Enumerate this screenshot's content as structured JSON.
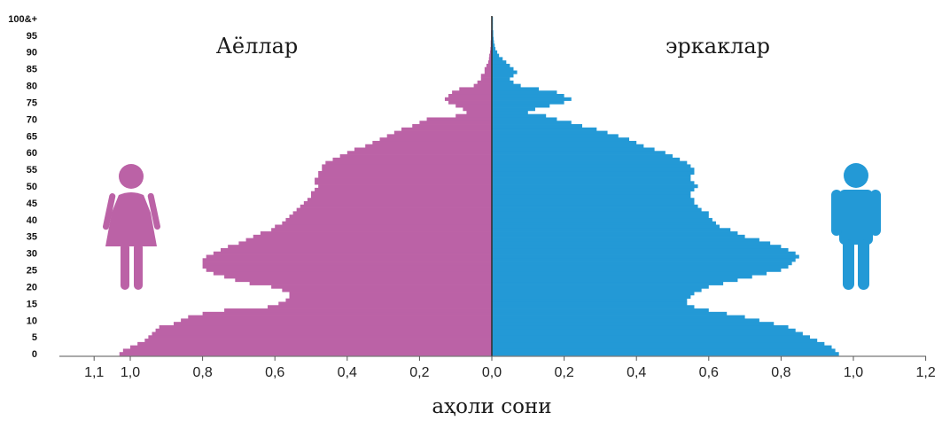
{
  "chart_data": {
    "type": "bar",
    "orientation": "horizontal-pyramid",
    "xlabel": "аҳоли сони",
    "female_label": "Аёллар",
    "male_label": "эркаклар",
    "age_ticks": [
      "0",
      "5",
      "10",
      "15",
      "20",
      "25",
      "30",
      "35",
      "40",
      "45",
      "50",
      "55",
      "60",
      "65",
      "70",
      "75",
      "80",
      "85",
      "90",
      "95",
      "100&+"
    ],
    "x_ticks_left": [
      "1,1",
      "1,0",
      "0,8",
      "0,6",
      "0,4",
      "0,2",
      "0,0"
    ],
    "x_ticks_right": [
      "0,2",
      "0,4",
      "0,6",
      "0,8",
      "1,0",
      "1,2"
    ],
    "xlim_left": [
      1.1,
      0
    ],
    "xlim_right": [
      0,
      1.2
    ],
    "ages": [
      0,
      1,
      2,
      3,
      4,
      5,
      6,
      7,
      8,
      9,
      10,
      11,
      12,
      13,
      14,
      15,
      16,
      17,
      18,
      19,
      20,
      21,
      22,
      23,
      24,
      25,
      26,
      27,
      28,
      29,
      30,
      31,
      32,
      33,
      34,
      35,
      36,
      37,
      38,
      39,
      40,
      41,
      42,
      43,
      44,
      45,
      46,
      47,
      48,
      49,
      50,
      51,
      52,
      53,
      54,
      55,
      56,
      57,
      58,
      59,
      60,
      61,
      62,
      63,
      64,
      65,
      66,
      67,
      68,
      69,
      70,
      71,
      72,
      73,
      74,
      75,
      76,
      77,
      78,
      79,
      80,
      81,
      82,
      83,
      84,
      85,
      86,
      87,
      88,
      89,
      90,
      91,
      92,
      93,
      94,
      95,
      96,
      97,
      98,
      99,
      100
    ],
    "series": [
      {
        "name": "Аёллар",
        "color": "#bb62a6",
        "values": [
          1.03,
          1.02,
          1.0,
          0.98,
          0.96,
          0.95,
          0.94,
          0.93,
          0.92,
          0.88,
          0.86,
          0.84,
          0.8,
          0.74,
          0.62,
          0.59,
          0.57,
          0.56,
          0.56,
          0.58,
          0.61,
          0.67,
          0.71,
          0.74,
          0.77,
          0.79,
          0.8,
          0.8,
          0.8,
          0.79,
          0.77,
          0.75,
          0.73,
          0.7,
          0.68,
          0.66,
          0.64,
          0.61,
          0.6,
          0.58,
          0.57,
          0.56,
          0.55,
          0.54,
          0.53,
          0.52,
          0.51,
          0.5,
          0.5,
          0.49,
          0.48,
          0.49,
          0.49,
          0.48,
          0.48,
          0.47,
          0.47,
          0.46,
          0.44,
          0.42,
          0.4,
          0.38,
          0.35,
          0.33,
          0.31,
          0.29,
          0.27,
          0.25,
          0.22,
          0.2,
          0.18,
          0.1,
          0.07,
          0.08,
          0.1,
          0.12,
          0.13,
          0.12,
          0.11,
          0.09,
          0.05,
          0.04,
          0.03,
          0.03,
          0.02,
          0.02,
          0.015,
          0.01,
          0.008,
          0.007,
          0.005,
          0.004,
          0.003,
          0.003,
          0.002,
          0.002,
          0.002,
          0.001,
          0.001,
          0.001,
          0.001
        ]
      },
      {
        "name": "эркаклар",
        "color": "#2399d6",
        "values": [
          0.96,
          0.95,
          0.94,
          0.92,
          0.9,
          0.88,
          0.86,
          0.84,
          0.82,
          0.78,
          0.74,
          0.7,
          0.65,
          0.6,
          0.56,
          0.54,
          0.54,
          0.55,
          0.56,
          0.58,
          0.6,
          0.64,
          0.68,
          0.72,
          0.76,
          0.8,
          0.82,
          0.83,
          0.84,
          0.85,
          0.84,
          0.82,
          0.8,
          0.77,
          0.74,
          0.7,
          0.68,
          0.66,
          0.63,
          0.62,
          0.61,
          0.6,
          0.6,
          0.58,
          0.57,
          0.56,
          0.56,
          0.55,
          0.55,
          0.56,
          0.57,
          0.56,
          0.55,
          0.55,
          0.56,
          0.56,
          0.55,
          0.54,
          0.52,
          0.5,
          0.48,
          0.45,
          0.42,
          0.4,
          0.38,
          0.35,
          0.32,
          0.29,
          0.25,
          0.22,
          0.18,
          0.15,
          0.1,
          0.12,
          0.16,
          0.2,
          0.22,
          0.2,
          0.18,
          0.13,
          0.08,
          0.06,
          0.05,
          0.06,
          0.07,
          0.06,
          0.05,
          0.04,
          0.03,
          0.02,
          0.015,
          0.01,
          0.008,
          0.006,
          0.005,
          0.004,
          0.004,
          0.003,
          0.003,
          0.003,
          0.003
        ]
      }
    ],
    "grid": false,
    "colors": {
      "female": "#bb62a6",
      "male": "#2399d6",
      "axis": "#333333"
    },
    "icons": [
      "female-person-icon",
      "male-person-icon"
    ]
  }
}
